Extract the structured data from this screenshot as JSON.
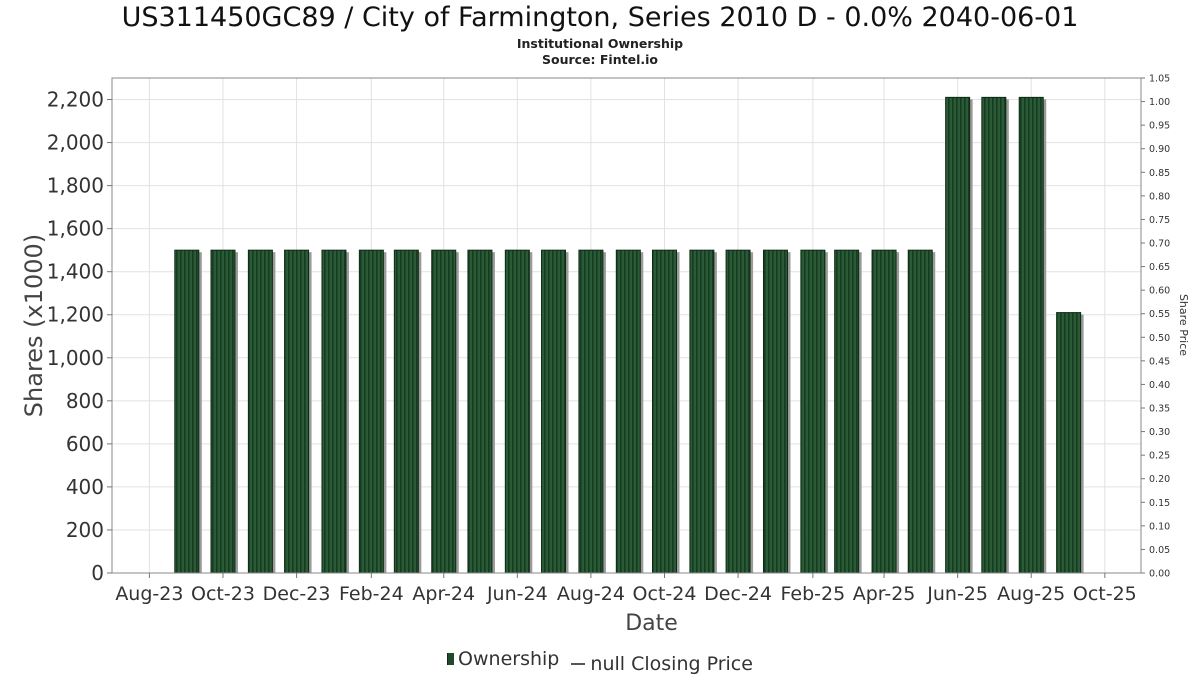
{
  "chart_data": {
    "type": "bar",
    "title": "US311450GC89 / City of Farmington, Series 2010 D - 0.0% 2040-06-01",
    "subtitle_lines": [
      "Institutional Ownership",
      "Source: Fintel.io"
    ],
    "xlabel": "Date",
    "ylabel": "Shares (x1000)",
    "y2label": "Share Price",
    "ylim": [
      0,
      2300
    ],
    "y2lim": [
      0,
      1.05
    ],
    "yticks": [
      0,
      200,
      400,
      600,
      800,
      1000,
      1200,
      1400,
      1600,
      1800,
      2000,
      2200
    ],
    "ytick_labels": [
      "0",
      "200",
      "400",
      "600",
      "800",
      "1,000",
      "1,200",
      "1,400",
      "1,600",
      "1,800",
      "2,000",
      "2,200"
    ],
    "y2ticks": [
      "0.00",
      "0.05",
      "0.10",
      "0.15",
      "0.20",
      "0.25",
      "0.30",
      "0.35",
      "0.40",
      "0.45",
      "0.50",
      "0.55",
      "0.60",
      "0.65",
      "0.70",
      "0.75",
      "0.80",
      "0.85",
      "0.90",
      "0.95",
      "1.00",
      "1.05"
    ],
    "xlim": [
      "2023-07-01",
      "2025-10-31"
    ],
    "xticks": [
      {
        "date": "2023-08-01",
        "label": "Aug-23"
      },
      {
        "date": "2023-10-01",
        "label": "Oct-23"
      },
      {
        "date": "2023-12-01",
        "label": "Dec-23"
      },
      {
        "date": "2024-02-01",
        "label": "Feb-24"
      },
      {
        "date": "2024-04-01",
        "label": "Apr-24"
      },
      {
        "date": "2024-06-01",
        "label": "Jun-24"
      },
      {
        "date": "2024-08-01",
        "label": "Aug-24"
      },
      {
        "date": "2024-10-01",
        "label": "Oct-24"
      },
      {
        "date": "2024-12-01",
        "label": "Dec-24"
      },
      {
        "date": "2025-02-01",
        "label": "Feb-25"
      },
      {
        "date": "2025-04-01",
        "label": "Apr-25"
      },
      {
        "date": "2025-06-01",
        "label": "Jun-25"
      },
      {
        "date": "2025-08-01",
        "label": "Aug-25"
      },
      {
        "date": "2025-10-01",
        "label": "Oct-25"
      }
    ],
    "series": [
      {
        "name": "Ownership",
        "color": "#1f4a2b",
        "points": [
          {
            "date": "2023-09-01",
            "value": 1500
          },
          {
            "date": "2023-10-01",
            "value": 1500
          },
          {
            "date": "2023-11-01",
            "value": 1500
          },
          {
            "date": "2023-12-01",
            "value": 1500
          },
          {
            "date": "2024-01-01",
            "value": 1500
          },
          {
            "date": "2024-02-01",
            "value": 1500
          },
          {
            "date": "2024-03-01",
            "value": 1500
          },
          {
            "date": "2024-04-01",
            "value": 1500
          },
          {
            "date": "2024-05-01",
            "value": 1500
          },
          {
            "date": "2024-06-01",
            "value": 1500
          },
          {
            "date": "2024-07-01",
            "value": 1500
          },
          {
            "date": "2024-08-01",
            "value": 1500
          },
          {
            "date": "2024-09-01",
            "value": 1500
          },
          {
            "date": "2024-10-01",
            "value": 1500
          },
          {
            "date": "2024-11-01",
            "value": 1500
          },
          {
            "date": "2024-12-01",
            "value": 1500
          },
          {
            "date": "2025-01-01",
            "value": 1500
          },
          {
            "date": "2025-02-01",
            "value": 1500
          },
          {
            "date": "2025-03-01",
            "value": 1500
          },
          {
            "date": "2025-04-01",
            "value": 1500
          },
          {
            "date": "2025-05-01",
            "value": 1500
          },
          {
            "date": "2025-06-01",
            "value": 2210
          },
          {
            "date": "2025-07-01",
            "value": 2210
          },
          {
            "date": "2025-08-01",
            "value": 2210
          },
          {
            "date": "2025-09-01",
            "value": 1210
          }
        ]
      },
      {
        "name": "null Closing Price",
        "color": "#555555",
        "points": []
      }
    ],
    "grid": true,
    "legend_position": "bottom-center"
  }
}
